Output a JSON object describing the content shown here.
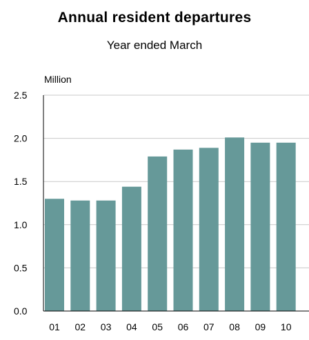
{
  "chart_data": {
    "type": "bar",
    "title": "Annual resident departures",
    "subtitle": "Year ended March",
    "ylabel": "Million",
    "xlabel": "",
    "categories": [
      "01",
      "02",
      "03",
      "04",
      "05",
      "06",
      "07",
      "08",
      "09",
      "10"
    ],
    "values": [
      1.3,
      1.28,
      1.28,
      1.44,
      1.79,
      1.87,
      1.89,
      2.01,
      1.95,
      1.95
    ],
    "ylim": [
      0,
      2.5
    ],
    "yticks": [
      "0.0",
      "0.5",
      "1.0",
      "1.5",
      "2.0",
      "2.5"
    ],
    "grid": true,
    "legend": "none",
    "bar_color": "#669999",
    "grid_color": "#c8c8c8"
  }
}
